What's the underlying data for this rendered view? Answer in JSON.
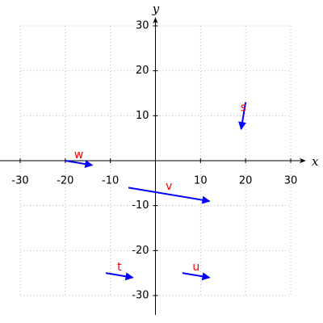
{
  "chart_data": {
    "type": "vector",
    "x_label": "x",
    "y_label": "y",
    "xlim": [
      -30,
      30
    ],
    "ylim": [
      -30,
      30
    ],
    "xticks": [
      -30,
      -20,
      -10,
      10,
      20,
      30
    ],
    "yticks": [
      -30,
      -20,
      -10,
      10,
      20,
      30
    ],
    "grid": true,
    "color": "#0000ff",
    "label_color": "#ff0000",
    "series": [
      {
        "name": "s",
        "x": [
          20,
          19
        ],
        "y": [
          13,
          7
        ]
      },
      {
        "name": "w",
        "x": [
          -20,
          -14
        ],
        "y": [
          0,
          -1
        ]
      },
      {
        "name": "v",
        "x": [
          -6,
          12
        ],
        "y": [
          -6,
          -9
        ]
      },
      {
        "name": "t",
        "x": [
          -11,
          -5
        ],
        "y": [
          -25,
          -26
        ]
      },
      {
        "name": "u",
        "x": [
          6,
          12
        ],
        "y": [
          -25,
          -26
        ]
      }
    ]
  }
}
